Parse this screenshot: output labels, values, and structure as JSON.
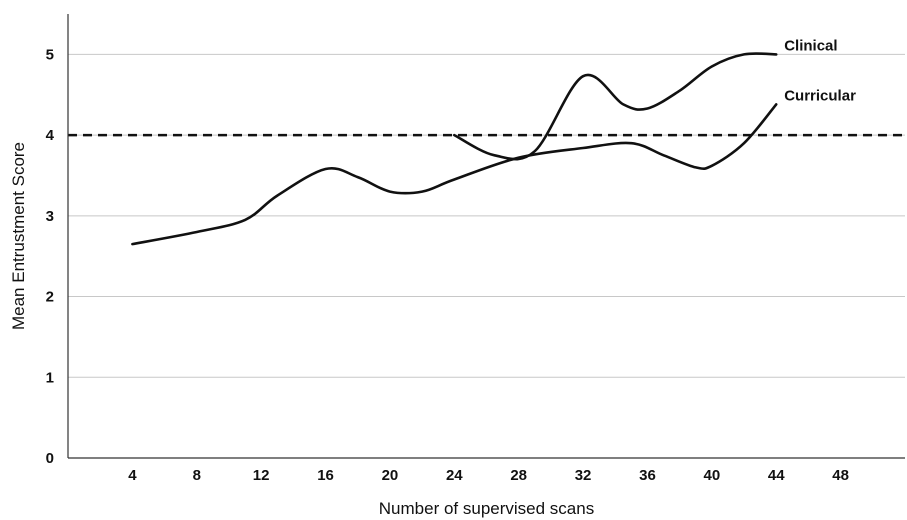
{
  "chart_data": {
    "type": "line",
    "xlabel": "Number of supervised scans",
    "ylabel": "Mean Entrustment Score",
    "xlim": [
      0,
      52
    ],
    "ylim": [
      0,
      5.5
    ],
    "x_ticks": [
      4,
      8,
      12,
      16,
      20,
      24,
      28,
      32,
      36,
      40,
      44,
      48
    ],
    "y_ticks": [
      0,
      1,
      2,
      3,
      4,
      5
    ],
    "grid": "horizontal",
    "reference_line": {
      "y": 4,
      "style": "dashed"
    },
    "series": [
      {
        "name": "Clinical",
        "points": [
          [
            24,
            4.0
          ],
          [
            26.5,
            3.75
          ],
          [
            29,
            3.8
          ],
          [
            32,
            4.73
          ],
          [
            34.5,
            4.38
          ],
          [
            36,
            4.33
          ],
          [
            38,
            4.55
          ],
          [
            40,
            4.85
          ],
          [
            42,
            5.0
          ],
          [
            44,
            5.0
          ]
        ]
      },
      {
        "name": "Curricular",
        "points": [
          [
            4,
            2.65
          ],
          [
            8,
            2.8
          ],
          [
            11,
            2.95
          ],
          [
            13,
            3.25
          ],
          [
            16,
            3.58
          ],
          [
            18,
            3.48
          ],
          [
            20,
            3.3
          ],
          [
            22,
            3.3
          ],
          [
            24,
            3.45
          ],
          [
            28,
            3.72
          ],
          [
            32,
            3.84
          ],
          [
            35,
            3.9
          ],
          [
            37,
            3.75
          ],
          [
            39,
            3.6
          ],
          [
            40,
            3.62
          ],
          [
            42,
            3.9
          ],
          [
            44,
            4.38
          ]
        ]
      }
    ]
  }
}
